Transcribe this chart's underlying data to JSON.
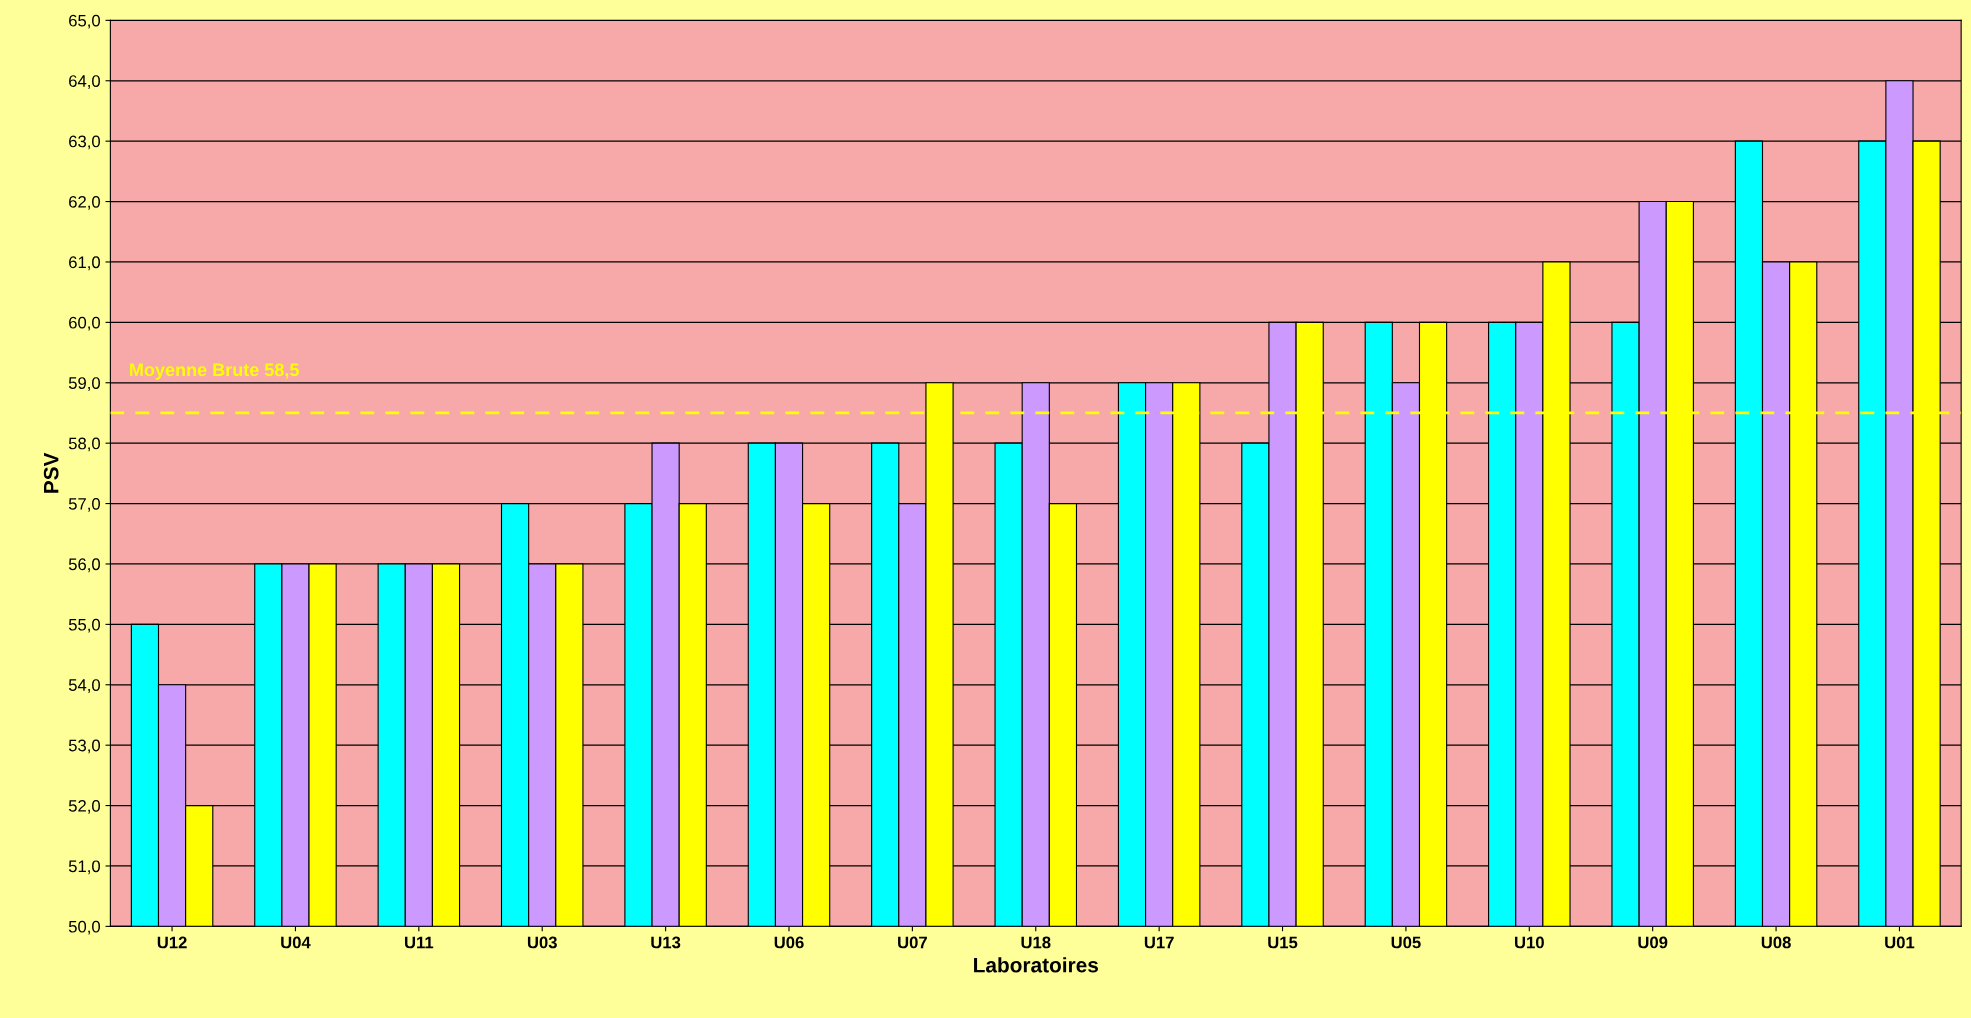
{
  "chart_data": {
    "type": "bar",
    "xlabel": "Laboratoires",
    "ylabel": "PSV",
    "categories": [
      "U12",
      "U04",
      "U11",
      "U03",
      "U13",
      "U06",
      "U07",
      "U18",
      "U17",
      "U15",
      "U05",
      "U10",
      "U09",
      "U08",
      "U01"
    ],
    "series": [
      {
        "color": "#00ffff",
        "values": [
          55,
          56,
          56,
          57,
          57,
          58,
          58,
          58,
          59,
          58,
          60,
          60,
          60,
          63,
          63
        ]
      },
      {
        "color": "#cc99ff",
        "values": [
          54,
          56,
          56,
          56,
          58,
          58,
          57,
          59,
          59,
          60,
          59,
          60,
          62,
          61,
          64
        ]
      },
      {
        "color": "#ffff00",
        "values": [
          52,
          56,
          56,
          56,
          57,
          57,
          59,
          57,
          59,
          60,
          60,
          61,
          62,
          61,
          63
        ]
      }
    ],
    "ylim": [
      50,
      65
    ],
    "yticks": [
      {
        "value": 50,
        "label": "50,0"
      },
      {
        "value": 51,
        "label": "51,0"
      },
      {
        "value": 52,
        "label": "52,0"
      },
      {
        "value": 53,
        "label": "53,0"
      },
      {
        "value": 54,
        "label": "54,0"
      },
      {
        "value": 55,
        "label": "55,0"
      },
      {
        "value": 56,
        "label": "56,0"
      },
      {
        "value": 57,
        "label": "57,0"
      },
      {
        "value": 58,
        "label": "58,0"
      },
      {
        "value": 59,
        "label": "59,0"
      },
      {
        "value": 60,
        "label": "60,0"
      },
      {
        "value": 61,
        "label": "61,0"
      },
      {
        "value": 62,
        "label": "62,0"
      },
      {
        "value": 63,
        "label": "63,0"
      },
      {
        "value": 64,
        "label": "64,0"
      },
      {
        "value": 65,
        "label": "65,0"
      }
    ],
    "ref_lines": [
      {
        "axis": "y",
        "value": 58.5,
        "label": "Moyenne Brute 58,5",
        "color": "#ffff00",
        "line_style": "dashed"
      }
    ],
    "grid": "y"
  }
}
